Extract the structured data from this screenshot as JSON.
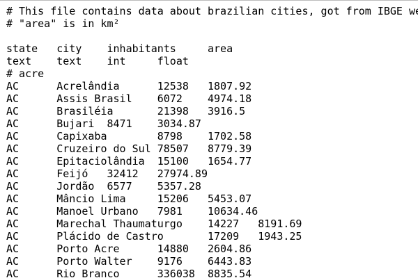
{
  "editor": {
    "comments": [
      "# This file contains data about brazilian cities, got from IBGE we",
      "# \"area\" is in km²"
    ],
    "header": [
      "state\tcity\tinhabitants\tarea",
      "text\ttext\tint\tfloat"
    ],
    "section": "# acre",
    "rows": [
      "AC\tAcrelândia\t12538\t1807.92",
      "AC\tAssis Brasil\t6072\t4974.18",
      "AC\tBrasiléia\t21398\t3916.5",
      "AC\tBujari\t8471\t3034.87",
      "AC\tCapixaba\t8798\t1702.58",
      "AC\tCruzeiro do Sul\t78507\t8779.39",
      "AC\tEpitaciolândia\t15100\t1654.77",
      "AC\tFeijó\t32412\t27974.89",
      "AC\tJordão\t6577\t5357.28",
      "AC\tMâncio Lima\t15206\t5453.07",
      "AC\tManoel Urbano\t7981\t10634.46",
      "AC\tMarechal Thaumaturgo\t14227\t8191.69",
      "AC\tPlácido de Castro\t17209\t1943.25",
      "AC\tPorto Acre\t14880\t2604.86",
      "AC\tPorto Walter\t9176\t6443.83",
      "AC\tRio Branco\t336038\t8835.54"
    ]
  }
}
